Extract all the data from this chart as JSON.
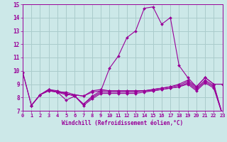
{
  "xlabel": "Windchill (Refroidissement éolien,°C)",
  "xlim": [
    0,
    23
  ],
  "ylim": [
    7,
    15
  ],
  "xticks": [
    0,
    1,
    2,
    3,
    4,
    5,
    6,
    7,
    8,
    9,
    10,
    11,
    12,
    13,
    14,
    15,
    16,
    17,
    18,
    19,
    20,
    21,
    22,
    23
  ],
  "yticks": [
    7,
    8,
    9,
    10,
    11,
    12,
    13,
    14,
    15
  ],
  "background_color": "#cce8e8",
  "grid_color": "#aacccc",
  "line_color": "#990099",
  "lines": [
    {
      "x": [
        0,
        1,
        2,
        3,
        4,
        5,
        6,
        7,
        8,
        9,
        10,
        11,
        12,
        13,
        14,
        15,
        16,
        17,
        18,
        19,
        20,
        21,
        22,
        23
      ],
      "y": [
        9.9,
        7.4,
        8.2,
        8.6,
        8.4,
        7.8,
        8.1,
        7.5,
        8.1,
        8.5,
        10.2,
        11.1,
        12.5,
        13.0,
        14.7,
        14.8,
        13.5,
        14.0,
        10.4,
        9.5,
        8.8,
        9.5,
        9.0,
        9.0
      ]
    },
    {
      "x": [
        0,
        1,
        2,
        3,
        4,
        5,
        6,
        7,
        8,
        9,
        10,
        11,
        12,
        13,
        14,
        15,
        16,
        17,
        18,
        19,
        20,
        21,
        22,
        23
      ],
      "y": [
        9.9,
        7.4,
        8.2,
        8.5,
        8.4,
        8.4,
        8.2,
        8.1,
        8.5,
        8.6,
        8.5,
        8.5,
        8.5,
        8.5,
        8.5,
        8.6,
        8.7,
        8.8,
        9.0,
        9.3,
        8.8,
        9.5,
        9.0,
        6.7
      ]
    },
    {
      "x": [
        1,
        2,
        3,
        4,
        5,
        6,
        7,
        8,
        9,
        10,
        11,
        12,
        13,
        14,
        15,
        16,
        17,
        18,
        19,
        20,
        21,
        22,
        23
      ],
      "y": [
        7.4,
        8.2,
        8.6,
        8.4,
        8.2,
        8.2,
        8.1,
        8.4,
        8.5,
        8.5,
        8.5,
        8.5,
        8.5,
        8.5,
        8.6,
        8.7,
        8.8,
        8.9,
        9.2,
        8.7,
        9.3,
        8.9,
        6.7
      ]
    },
    {
      "x": [
        1,
        2,
        3,
        4,
        5,
        6,
        7,
        8,
        9,
        10,
        11,
        12,
        13,
        14,
        15,
        16,
        17,
        18,
        19,
        20,
        21,
        22,
        23
      ],
      "y": [
        7.4,
        8.2,
        8.6,
        8.5,
        8.3,
        8.1,
        7.5,
        8.0,
        8.4,
        8.4,
        8.4,
        8.4,
        8.4,
        8.5,
        8.5,
        8.6,
        8.7,
        8.8,
        9.1,
        8.6,
        9.2,
        8.8,
        6.7
      ]
    },
    {
      "x": [
        2,
        3,
        4,
        5,
        6,
        7,
        8,
        9,
        10,
        11,
        12,
        13,
        14,
        15,
        16,
        17,
        18,
        19,
        20,
        21,
        22,
        23
      ],
      "y": [
        8.2,
        8.5,
        8.4,
        8.3,
        8.1,
        7.4,
        7.9,
        8.3,
        8.3,
        8.3,
        8.3,
        8.3,
        8.4,
        8.5,
        8.6,
        8.7,
        8.8,
        9.0,
        8.5,
        9.1,
        8.7,
        6.7
      ]
    }
  ]
}
